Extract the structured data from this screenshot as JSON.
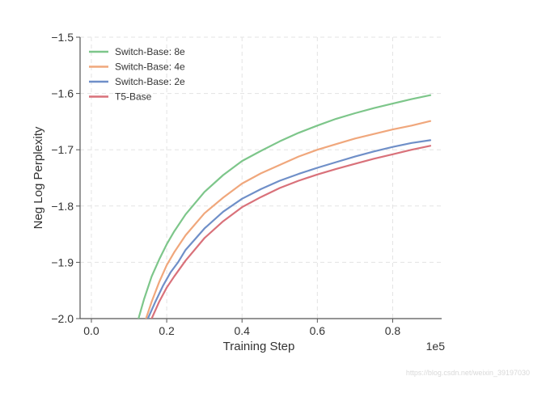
{
  "chart_data": {
    "type": "line",
    "xlabel": "Training Step",
    "ylabel": "Neg Log Perplexity",
    "x_scale_label": "1e5",
    "xlim": [
      -0.03,
      0.93
    ],
    "ylim": [
      -2.0,
      -1.5
    ],
    "x_ticks": [
      0.0,
      0.2,
      0.4,
      0.6,
      0.8
    ],
    "x_tick_labels": [
      "0.0",
      "0.2",
      "0.4",
      "0.6",
      "0.8"
    ],
    "y_ticks": [
      -2.0,
      -1.9,
      -1.8,
      -1.7,
      -1.6,
      -1.5
    ],
    "y_tick_labels": [
      "−2.0",
      "−1.9",
      "−1.8",
      "−1.7",
      "−1.6",
      "−1.5"
    ],
    "grid": true,
    "legend_position": "top-left",
    "series": [
      {
        "name": "Switch-Base: 8e",
        "color": "#7dc68a",
        "points": [
          [
            0.125,
            -2.0
          ],
          [
            0.14,
            -1.965
          ],
          [
            0.16,
            -1.925
          ],
          [
            0.18,
            -1.895
          ],
          [
            0.2,
            -1.868
          ],
          [
            0.22,
            -1.845
          ],
          [
            0.25,
            -1.815
          ],
          [
            0.3,
            -1.775
          ],
          [
            0.35,
            -1.745
          ],
          [
            0.4,
            -1.72
          ],
          [
            0.45,
            -1.702
          ],
          [
            0.5,
            -1.685
          ],
          [
            0.55,
            -1.67
          ],
          [
            0.6,
            -1.657
          ],
          [
            0.65,
            -1.645
          ],
          [
            0.7,
            -1.635
          ],
          [
            0.75,
            -1.626
          ],
          [
            0.8,
            -1.618
          ],
          [
            0.85,
            -1.61
          ],
          [
            0.9,
            -1.603
          ]
        ]
      },
      {
        "name": "Switch-Base: 4e",
        "color": "#f0a77c",
        "points": [
          [
            0.145,
            -2.0
          ],
          [
            0.16,
            -1.97
          ],
          [
            0.18,
            -1.935
          ],
          [
            0.2,
            -1.905
          ],
          [
            0.22,
            -1.882
          ],
          [
            0.25,
            -1.852
          ],
          [
            0.3,
            -1.813
          ],
          [
            0.35,
            -1.785
          ],
          [
            0.4,
            -1.76
          ],
          [
            0.45,
            -1.742
          ],
          [
            0.5,
            -1.727
          ],
          [
            0.55,
            -1.712
          ],
          [
            0.6,
            -1.7
          ],
          [
            0.65,
            -1.69
          ],
          [
            0.7,
            -1.68
          ],
          [
            0.75,
            -1.672
          ],
          [
            0.8,
            -1.664
          ],
          [
            0.85,
            -1.657
          ],
          [
            0.9,
            -1.649
          ]
        ]
      },
      {
        "name": "Switch-Base: 2e",
        "color": "#6f8fc8",
        "points": [
          [
            0.15,
            -2.0
          ],
          [
            0.17,
            -1.97
          ],
          [
            0.19,
            -1.942
          ],
          [
            0.21,
            -1.918
          ],
          [
            0.23,
            -1.9
          ],
          [
            0.25,
            -1.878
          ],
          [
            0.3,
            -1.84
          ],
          [
            0.35,
            -1.81
          ],
          [
            0.4,
            -1.787
          ],
          [
            0.45,
            -1.77
          ],
          [
            0.5,
            -1.755
          ],
          [
            0.55,
            -1.743
          ],
          [
            0.6,
            -1.732
          ],
          [
            0.65,
            -1.722
          ],
          [
            0.7,
            -1.712
          ],
          [
            0.75,
            -1.703
          ],
          [
            0.8,
            -1.695
          ],
          [
            0.85,
            -1.688
          ],
          [
            0.9,
            -1.683
          ]
        ]
      },
      {
        "name": "T5-Base",
        "color": "#d9717a",
        "points": [
          [
            0.16,
            -2.0
          ],
          [
            0.18,
            -1.97
          ],
          [
            0.2,
            -1.945
          ],
          [
            0.22,
            -1.925
          ],
          [
            0.25,
            -1.897
          ],
          [
            0.3,
            -1.857
          ],
          [
            0.35,
            -1.827
          ],
          [
            0.4,
            -1.802
          ],
          [
            0.45,
            -1.784
          ],
          [
            0.5,
            -1.768
          ],
          [
            0.55,
            -1.755
          ],
          [
            0.6,
            -1.744
          ],
          [
            0.65,
            -1.734
          ],
          [
            0.7,
            -1.725
          ],
          [
            0.75,
            -1.716
          ],
          [
            0.8,
            -1.708
          ],
          [
            0.85,
            -1.7
          ],
          [
            0.9,
            -1.693
          ]
        ]
      }
    ]
  },
  "watermark": "https://blog.csdn.net/weixin_39197030"
}
